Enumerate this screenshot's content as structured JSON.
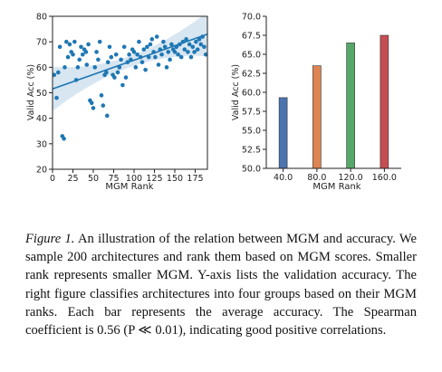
{
  "chart_data": [
    {
      "type": "scatter",
      "xlabel": "MGM Rank",
      "ylabel": "Valid Acc (%)",
      "xlim": [
        0,
        190
      ],
      "ylim": [
        20,
        80
      ],
      "xticks": [
        "0",
        "25",
        "50",
        "75",
        "100",
        "125",
        "150",
        "175"
      ],
      "yticks": [
        "20",
        "30",
        "40",
        "50",
        "60",
        "70",
        "80"
      ],
      "grid": false,
      "point_color": "#1f77b4",
      "regression": {
        "x0": 0,
        "y0": 51.5,
        "x1": 190,
        "y1": 73.0
      },
      "points": [
        [
          2,
          57
        ],
        [
          5,
          48
        ],
        [
          7,
          58
        ],
        [
          9,
          68
        ],
        [
          12,
          33
        ],
        [
          14,
          32
        ],
        [
          15,
          60
        ],
        [
          17,
          70
        ],
        [
          19,
          64
        ],
        [
          21,
          69
        ],
        [
          23,
          66
        ],
        [
          25,
          65
        ],
        [
          27,
          70
        ],
        [
          29,
          55
        ],
        [
          31,
          60
        ],
        [
          33,
          63
        ],
        [
          35,
          68
        ],
        [
          37,
          65
        ],
        [
          39,
          67
        ],
        [
          41,
          66
        ],
        [
          42,
          61
        ],
        [
          44,
          69
        ],
        [
          46,
          47
        ],
        [
          48,
          46
        ],
        [
          50,
          44
        ],
        [
          52,
          60
        ],
        [
          54,
          66
        ],
        [
          56,
          63
        ],
        [
          58,
          70
        ],
        [
          60,
          49
        ],
        [
          62,
          45
        ],
        [
          64,
          57
        ],
        [
          66,
          58
        ],
        [
          67,
          41
        ],
        [
          68,
          62
        ],
        [
          70,
          68
        ],
        [
          72,
          64
        ],
        [
          74,
          57
        ],
        [
          76,
          56
        ],
        [
          78,
          65
        ],
        [
          80,
          58
        ],
        [
          82,
          60
        ],
        [
          84,
          63
        ],
        [
          86,
          53
        ],
        [
          88,
          68
        ],
        [
          90,
          56
        ],
        [
          92,
          62
        ],
        [
          94,
          65
        ],
        [
          96,
          63
        ],
        [
          98,
          67
        ],
        [
          100,
          66
        ],
        [
          102,
          60
        ],
        [
          104,
          65
        ],
        [
          106,
          70
        ],
        [
          108,
          64
        ],
        [
          110,
          62
        ],
        [
          112,
          67
        ],
        [
          114,
          59
        ],
        [
          116,
          68
        ],
        [
          118,
          64
        ],
        [
          120,
          69
        ],
        [
          122,
          71
        ],
        [
          124,
          66
        ],
        [
          126,
          64
        ],
        [
          128,
          72
        ],
        [
          130,
          61
        ],
        [
          132,
          67
        ],
        [
          134,
          65
        ],
        [
          136,
          70
        ],
        [
          138,
          68
        ],
        [
          140,
          60
        ],
        [
          142,
          66
        ],
        [
          144,
          63
        ],
        [
          146,
          69
        ],
        [
          148,
          67
        ],
        [
          150,
          66
        ],
        [
          152,
          68
        ],
        [
          154,
          65
        ],
        [
          156,
          69
        ],
        [
          158,
          64
        ],
        [
          160,
          70
        ],
        [
          162,
          67
        ],
        [
          164,
          71
        ],
        [
          166,
          66
        ],
        [
          168,
          69
        ],
        [
          170,
          64
        ],
        [
          172,
          68
        ],
        [
          174,
          66
        ],
        [
          176,
          70
        ],
        [
          178,
          67
        ],
        [
          180,
          71
        ],
        [
          182,
          69
        ],
        [
          184,
          72
        ],
        [
          186,
          68
        ],
        [
          188,
          65
        ]
      ]
    },
    {
      "type": "bar",
      "xlabel": "MGM Rank",
      "ylabel": "Valid Acc (%)",
      "ylim": [
        50,
        70
      ],
      "yticks": [
        "50.0",
        "52.5",
        "55.0",
        "57.5",
        "60.0",
        "62.5",
        "65.0",
        "67.5",
        "70.0"
      ],
      "categories": [
        "40.0",
        "80.0",
        "120.0",
        "160.0"
      ],
      "values": [
        59.3,
        63.5,
        66.5,
        67.5
      ],
      "colors": [
        "#4c72b0",
        "#dd8452",
        "#55a868",
        "#c44e52"
      ]
    }
  ],
  "caption": {
    "label": "Figure 1.",
    "text": "An illustration of the relation between MGM and accuracy. We sample 200 architectures and rank them based on MGM scores. Smaller rank represents smaller MGM. Y-axis lists the validation accuracy. The right figure classifies architectures into four groups based on their MGM ranks. Each bar represents the average accuracy. The Spearman coefficient is 0.56 (P ≪ 0.01), indicating good positive correlations."
  }
}
